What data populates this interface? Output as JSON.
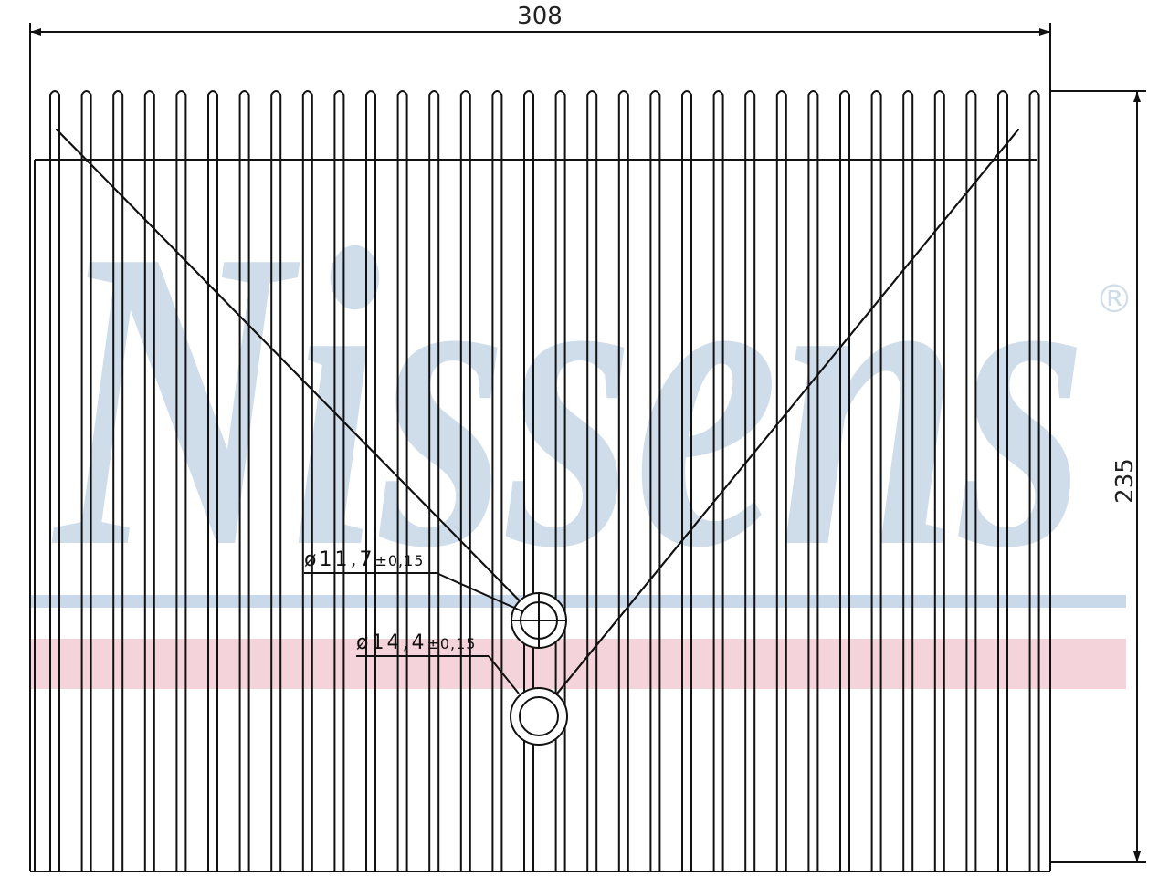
{
  "dimensions": {
    "width": 308,
    "height": 235
  },
  "ports": [
    {
      "diameter": "ø11,7",
      "tolerance": "±0,15"
    },
    {
      "diameter": "ø14,4",
      "tolerance": "±0,15"
    }
  ],
  "watermark": {
    "brand": "Nissens",
    "mark": "®"
  }
}
